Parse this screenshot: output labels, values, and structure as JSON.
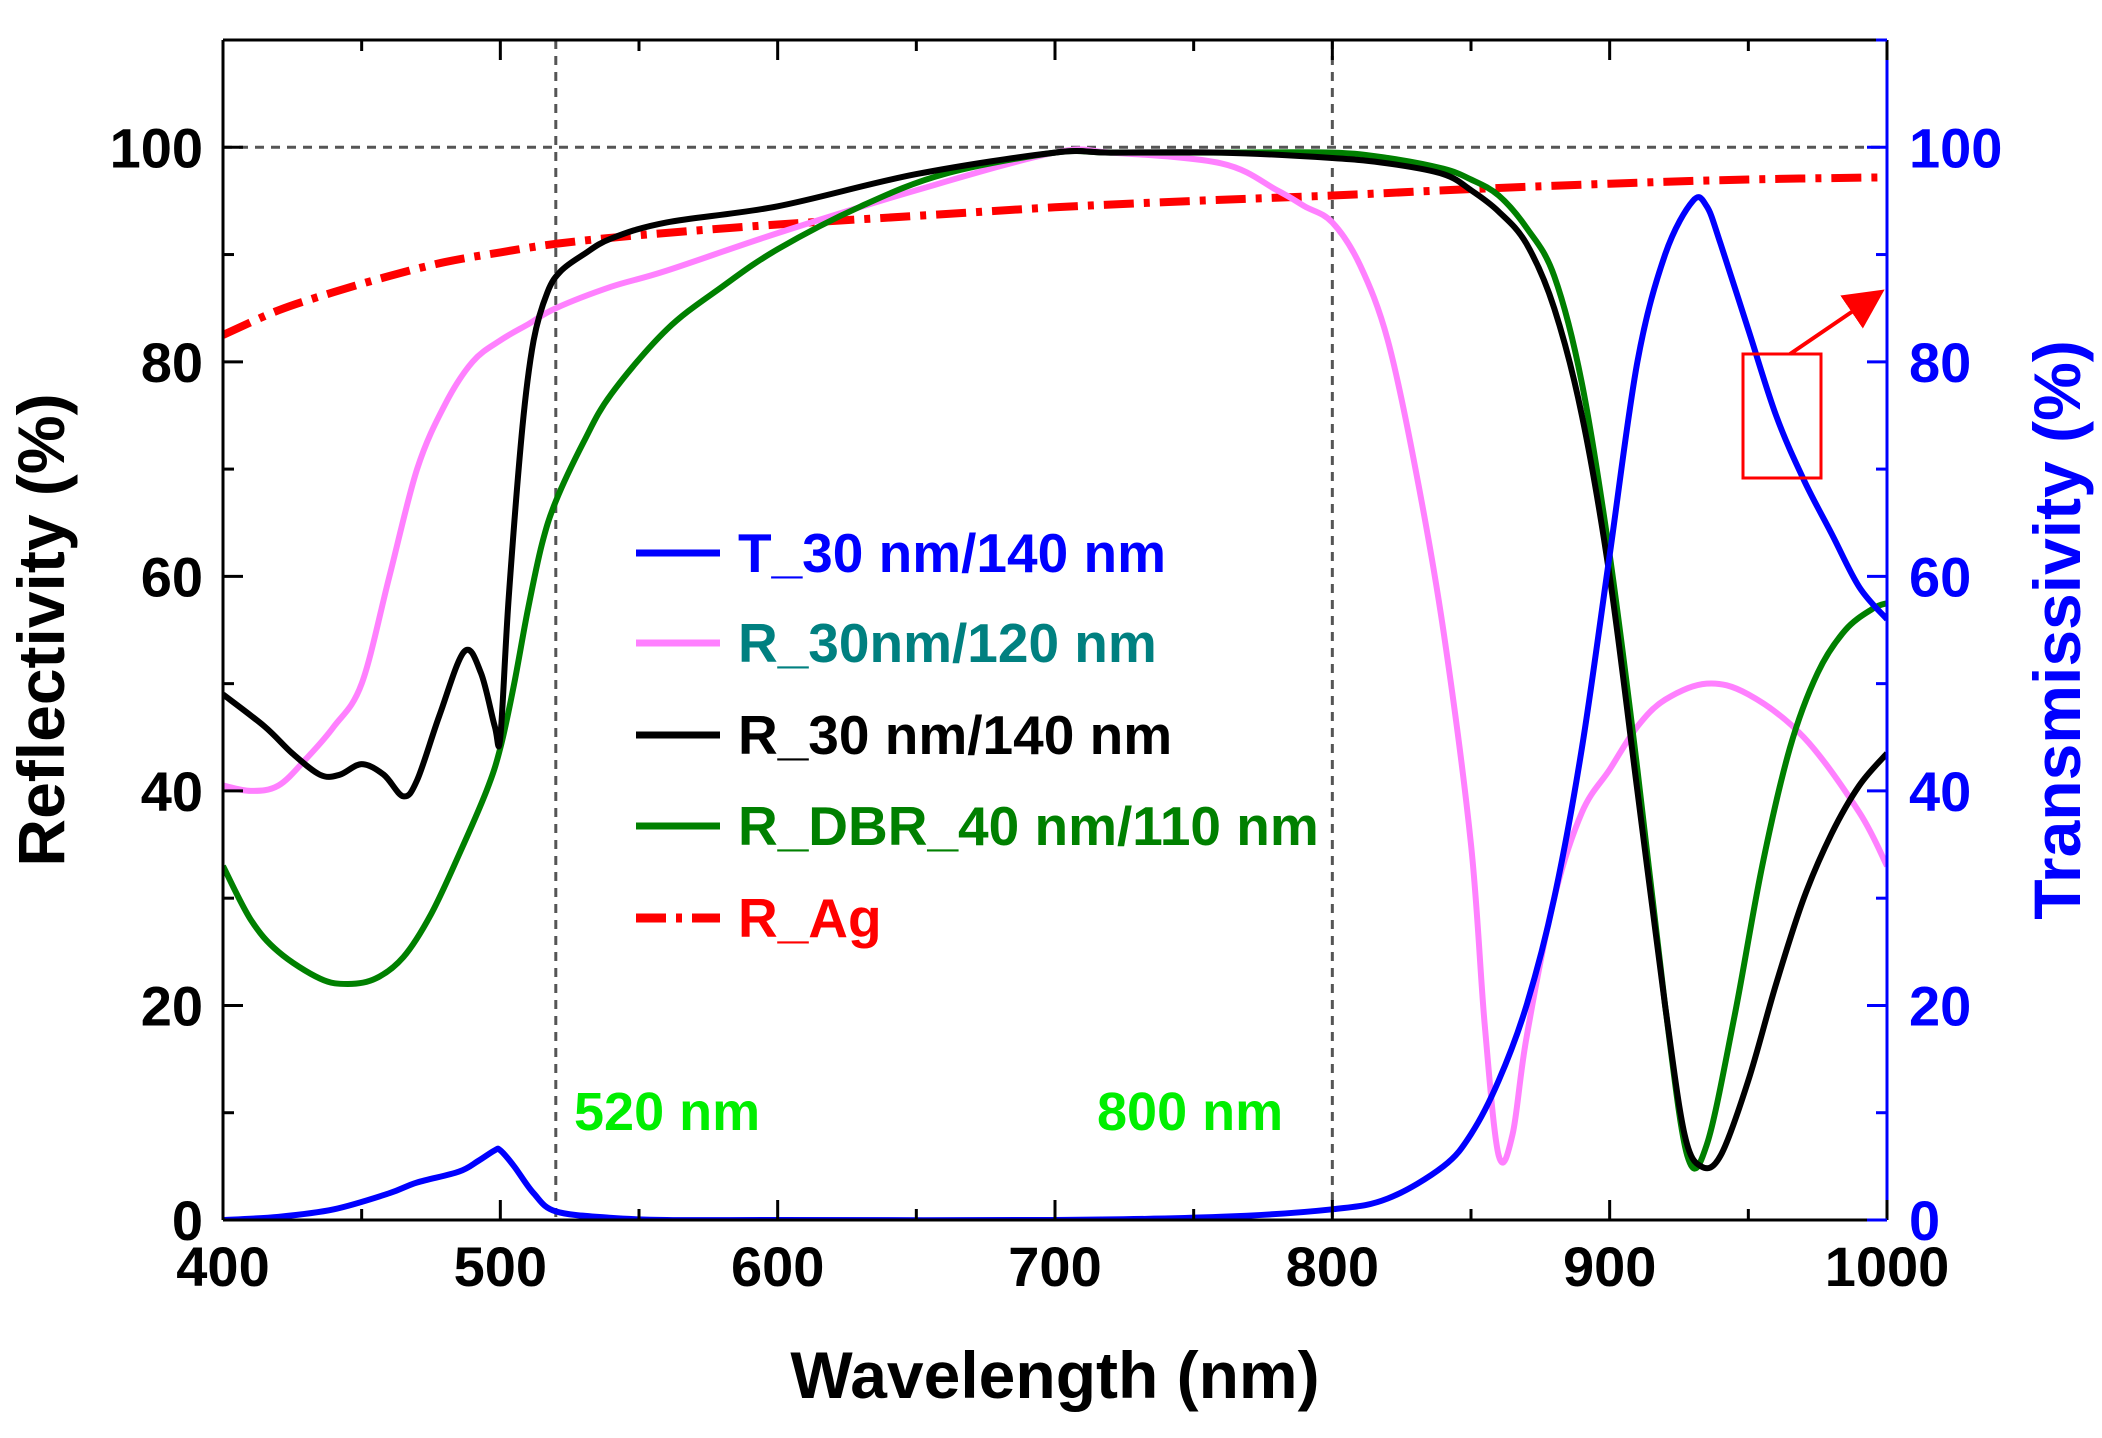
{
  "chart_data": {
    "type": "line",
    "title": "",
    "xlabel": "Wavelength (nm)",
    "ylabel": "Reflectivity (%)",
    "y2label": "Transmissivity (%)",
    "xlim": [
      400,
      1000
    ],
    "ylim": [
      0,
      110
    ],
    "y2lim": [
      0,
      110
    ],
    "xticks": [
      "400",
      "500",
      "600",
      "700",
      "800",
      "900",
      "1000"
    ],
    "yticks": [
      "0",
      "20",
      "40",
      "60",
      "80",
      "100"
    ],
    "y2ticks": [
      "0",
      "20",
      "40",
      "60",
      "80",
      "100"
    ],
    "colors": {
      "axis_left": "#000000",
      "axis_right": "#0000ff",
      "guide": "#555555",
      "annotation_text": "#00ee00",
      "marker_box": "#ff0000"
    },
    "reference_lines": {
      "vertical": [
        520,
        800
      ],
      "horizontal": [
        100
      ]
    },
    "annotations": [
      {
        "text": "520 nm",
        "x": 520,
        "y": 10
      },
      {
        "text": "800 nm",
        "x": 800,
        "y": 10
      }
    ],
    "series": [
      {
        "name": "T_30 nm/140 nm",
        "legend_color": "#0000ff",
        "color": "#0000ff",
        "dash": "solid",
        "axis": "right",
        "x": [
          400,
          420,
          440,
          460,
          470,
          485,
          492,
          498,
          500,
          505,
          512,
          520,
          540,
          560,
          600,
          700,
          760,
          800,
          820,
          840,
          850,
          860,
          870,
          880,
          890,
          900,
          910,
          920,
          930,
          935,
          940,
          950,
          960,
          970,
          980,
          990,
          1000
        ],
        "values": [
          0,
          0.3,
          1,
          2.5,
          3.5,
          4.5,
          5.5,
          6.5,
          6.5,
          5,
          2.5,
          0.8,
          0.2,
          0,
          0,
          0,
          0.3,
          1,
          2,
          5,
          8,
          13,
          20,
          30,
          44,
          62,
          80,
          90,
          95,
          94.5,
          91,
          83,
          75,
          69,
          64,
          59,
          56
        ]
      },
      {
        "name": "R_30nm/120 nm",
        "legend_color": "#008080",
        "color": "#ff80ff",
        "dash": "solid",
        "axis": "left",
        "x": [
          400,
          410,
          420,
          430,
          440,
          450,
          460,
          470,
          480,
          490,
          500,
          510,
          520,
          540,
          560,
          600,
          650,
          700,
          720,
          760,
          780,
          790,
          800,
          810,
          820,
          830,
          840,
          850,
          855,
          860,
          865,
          870,
          880,
          890,
          900,
          910,
          920,
          935,
          950,
          970,
          990,
          1000
        ],
        "values": [
          40.5,
          40,
          40.5,
          43,
          46,
          50,
          60,
          70,
          76,
          80,
          82,
          83.5,
          85,
          87,
          88.5,
          92,
          96,
          99.5,
          99.5,
          98.5,
          96,
          94.5,
          93,
          89,
          82,
          70,
          55,
          35,
          18,
          6,
          8,
          17,
          30,
          38,
          42,
          46,
          48.5,
          50,
          49,
          45,
          38,
          33
        ]
      },
      {
        "name": "R_30 nm/140 nm",
        "legend_color": "#000000",
        "color": "#000000",
        "dash": "solid",
        "axis": "left",
        "x": [
          400,
          415,
          425,
          435,
          442,
          450,
          458,
          465,
          470,
          478,
          487,
          493,
          498,
          500,
          503,
          508,
          512,
          517,
          522,
          530,
          540,
          560,
          600,
          650,
          700,
          720,
          760,
          800,
          820,
          840,
          850,
          860,
          870,
          880,
          890,
          900,
          910,
          920,
          927,
          933,
          940,
          950,
          960,
          970,
          980,
          990,
          1000
        ],
        "values": [
          49,
          46,
          43.5,
          41.5,
          41.5,
          42.5,
          41.5,
          39.5,
          41,
          47,
          53,
          51,
          46,
          45,
          58,
          74,
          82,
          86.5,
          88.5,
          90,
          91.5,
          93,
          94.5,
          97.5,
          99.5,
          99.5,
          99.5,
          99,
          98.5,
          97.5,
          96,
          94,
          91,
          85,
          75,
          60,
          40,
          20,
          8,
          5,
          6,
          13,
          22,
          30,
          36,
          40.5,
          43.5
        ]
      },
      {
        "name": "R_DBR_40 nm/110 nm",
        "legend_color": "#008000",
        "color": "#008000",
        "dash": "solid",
        "axis": "left",
        "x": [
          400,
          410,
          420,
          435,
          445,
          455,
          465,
          475,
          485,
          495,
          500,
          505,
          510,
          515,
          520,
          530,
          540,
          560,
          580,
          600,
          630,
          660,
          700,
          720,
          760,
          800,
          820,
          840,
          850,
          860,
          870,
          880,
          890,
          900,
          910,
          920,
          928,
          935,
          945,
          955,
          965,
          975,
          985,
          995,
          1000
        ],
        "values": [
          33,
          28,
          25,
          22.5,
          22,
          22.5,
          24.5,
          28.5,
          34,
          40,
          44,
          50,
          57,
          63,
          67,
          72.5,
          77,
          83,
          87,
          90.5,
          94.5,
          97.5,
          99.5,
          99.5,
          99.5,
          99.5,
          99,
          98,
          97,
          95.5,
          92.5,
          88,
          78,
          62,
          42,
          20,
          6,
          7,
          19,
          33,
          44,
          51,
          55,
          57,
          57.5
        ]
      },
      {
        "name": "R_Ag",
        "legend_color": "#ff0000",
        "color": "#ff0000",
        "dash": "dashdot",
        "axis": "left",
        "x": [
          400,
          420,
          440,
          460,
          480,
          500,
          520,
          550,
          600,
          650,
          700,
          750,
          800,
          850,
          900,
          950,
          1000
        ],
        "values": [
          82.5,
          84.8,
          86.5,
          88,
          89.3,
          90.2,
          91,
          91.8,
          92.8,
          93.6,
          94.4,
          95,
          95.5,
          96.1,
          96.6,
          97,
          97.2
        ]
      }
    ]
  }
}
